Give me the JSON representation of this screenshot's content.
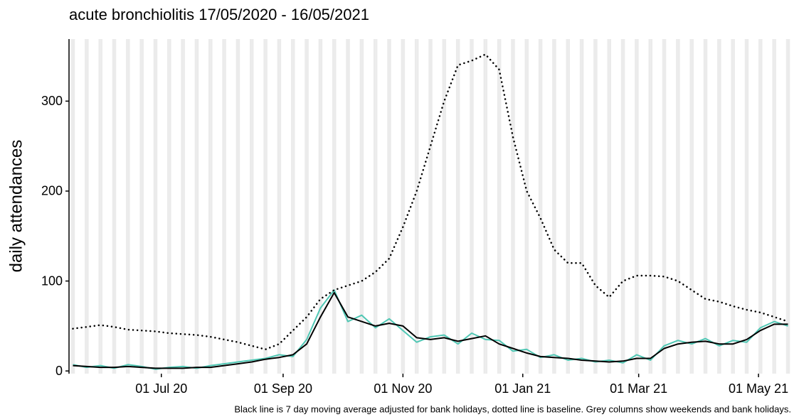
{
  "chart_data": {
    "type": "line",
    "title": "acute bronchiolitis 17/05/2020 - 16/05/2021",
    "y_label": "daily attendances",
    "caption": "Black line is 7 day moving average adjusted for bank holidays, dotted line is baseline. Grey columns show weekends and bank holidays.",
    "x": [
      "2020-05-17",
      "2020-05-24",
      "2020-05-31",
      "2020-06-07",
      "2020-06-14",
      "2020-06-21",
      "2020-06-28",
      "2020-07-05",
      "2020-07-12",
      "2020-07-19",
      "2020-07-26",
      "2020-08-02",
      "2020-08-09",
      "2020-08-16",
      "2020-08-23",
      "2020-08-30",
      "2020-09-06",
      "2020-09-13",
      "2020-09-20",
      "2020-09-27",
      "2020-10-04",
      "2020-10-11",
      "2020-10-18",
      "2020-10-25",
      "2020-11-01",
      "2020-11-08",
      "2020-11-15",
      "2020-11-22",
      "2020-11-29",
      "2020-12-06",
      "2020-12-13",
      "2020-12-20",
      "2020-12-27",
      "2021-01-03",
      "2021-01-10",
      "2021-01-17",
      "2021-01-24",
      "2021-01-31",
      "2021-02-07",
      "2021-02-14",
      "2021-02-21",
      "2021-02-28",
      "2021-03-07",
      "2021-03-14",
      "2021-03-21",
      "2021-03-28",
      "2021-04-04",
      "2021-04-11",
      "2021-04-18",
      "2021-04-25",
      "2021-05-02",
      "2021-05-09",
      "2021-05-16"
    ],
    "series": [
      {
        "style": "solid",
        "color": "#4fc7b4",
        "width": 2,
        "values": [
          7,
          4,
          6,
          3,
          7,
          5,
          2,
          4,
          5,
          3,
          6,
          8,
          10,
          12,
          14,
          18,
          16,
          35,
          70,
          90,
          55,
          62,
          48,
          58,
          45,
          32,
          38,
          40,
          30,
          42,
          35,
          34,
          22,
          24,
          15,
          18,
          12,
          14,
          10,
          12,
          9,
          18,
          12,
          28,
          34,
          30,
          36,
          28,
          34,
          32,
          48,
          55,
          50
        ]
      },
      {
        "style": "solid",
        "color": "#000000",
        "width": 2,
        "values": [
          6,
          5,
          4,
          4,
          5,
          4,
          3,
          3,
          3,
          4,
          4,
          6,
          8,
          10,
          13,
          15,
          18,
          30,
          60,
          87,
          60,
          55,
          50,
          53,
          50,
          37,
          35,
          37,
          33,
          36,
          39,
          30,
          25,
          20,
          16,
          15,
          14,
          12,
          11,
          10,
          11,
          14,
          14,
          25,
          30,
          32,
          33,
          30,
          30,
          35,
          45,
          52,
          52
        ]
      },
      {
        "style": "dotted",
        "color": "#000000",
        "width": 2,
        "values": [
          47,
          49,
          51,
          49,
          46,
          45,
          44,
          42,
          41,
          40,
          38,
          35,
          32,
          28,
          24,
          30,
          45,
          60,
          80,
          90,
          95,
          100,
          110,
          125,
          160,
          200,
          250,
          300,
          340,
          345,
          352,
          335,
          260,
          200,
          170,
          135,
          120,
          120,
          95,
          82,
          100,
          106,
          106,
          105,
          100,
          90,
          80,
          77,
          72,
          68,
          65,
          60,
          55
        ]
      }
    ],
    "xlim": [
      "2020-05-15",
      "2021-05-18"
    ],
    "xticks": [
      {
        "value": "2020-07-01",
        "label": "01 Jul 20"
      },
      {
        "value": "2020-09-01",
        "label": "01 Sep 20"
      },
      {
        "value": "2020-11-01",
        "label": "01 Nov 20"
      },
      {
        "value": "2021-01-01",
        "label": "01 Jan 21"
      },
      {
        "value": "2021-03-01",
        "label": "01 Mar 21"
      },
      {
        "value": "2021-05-01",
        "label": "01 May 21"
      }
    ],
    "ylim": [
      -3,
      369
    ],
    "yticks": [
      0,
      100,
      200,
      300
    ],
    "weekend_columns": true,
    "column_color": "#ebebeb"
  }
}
